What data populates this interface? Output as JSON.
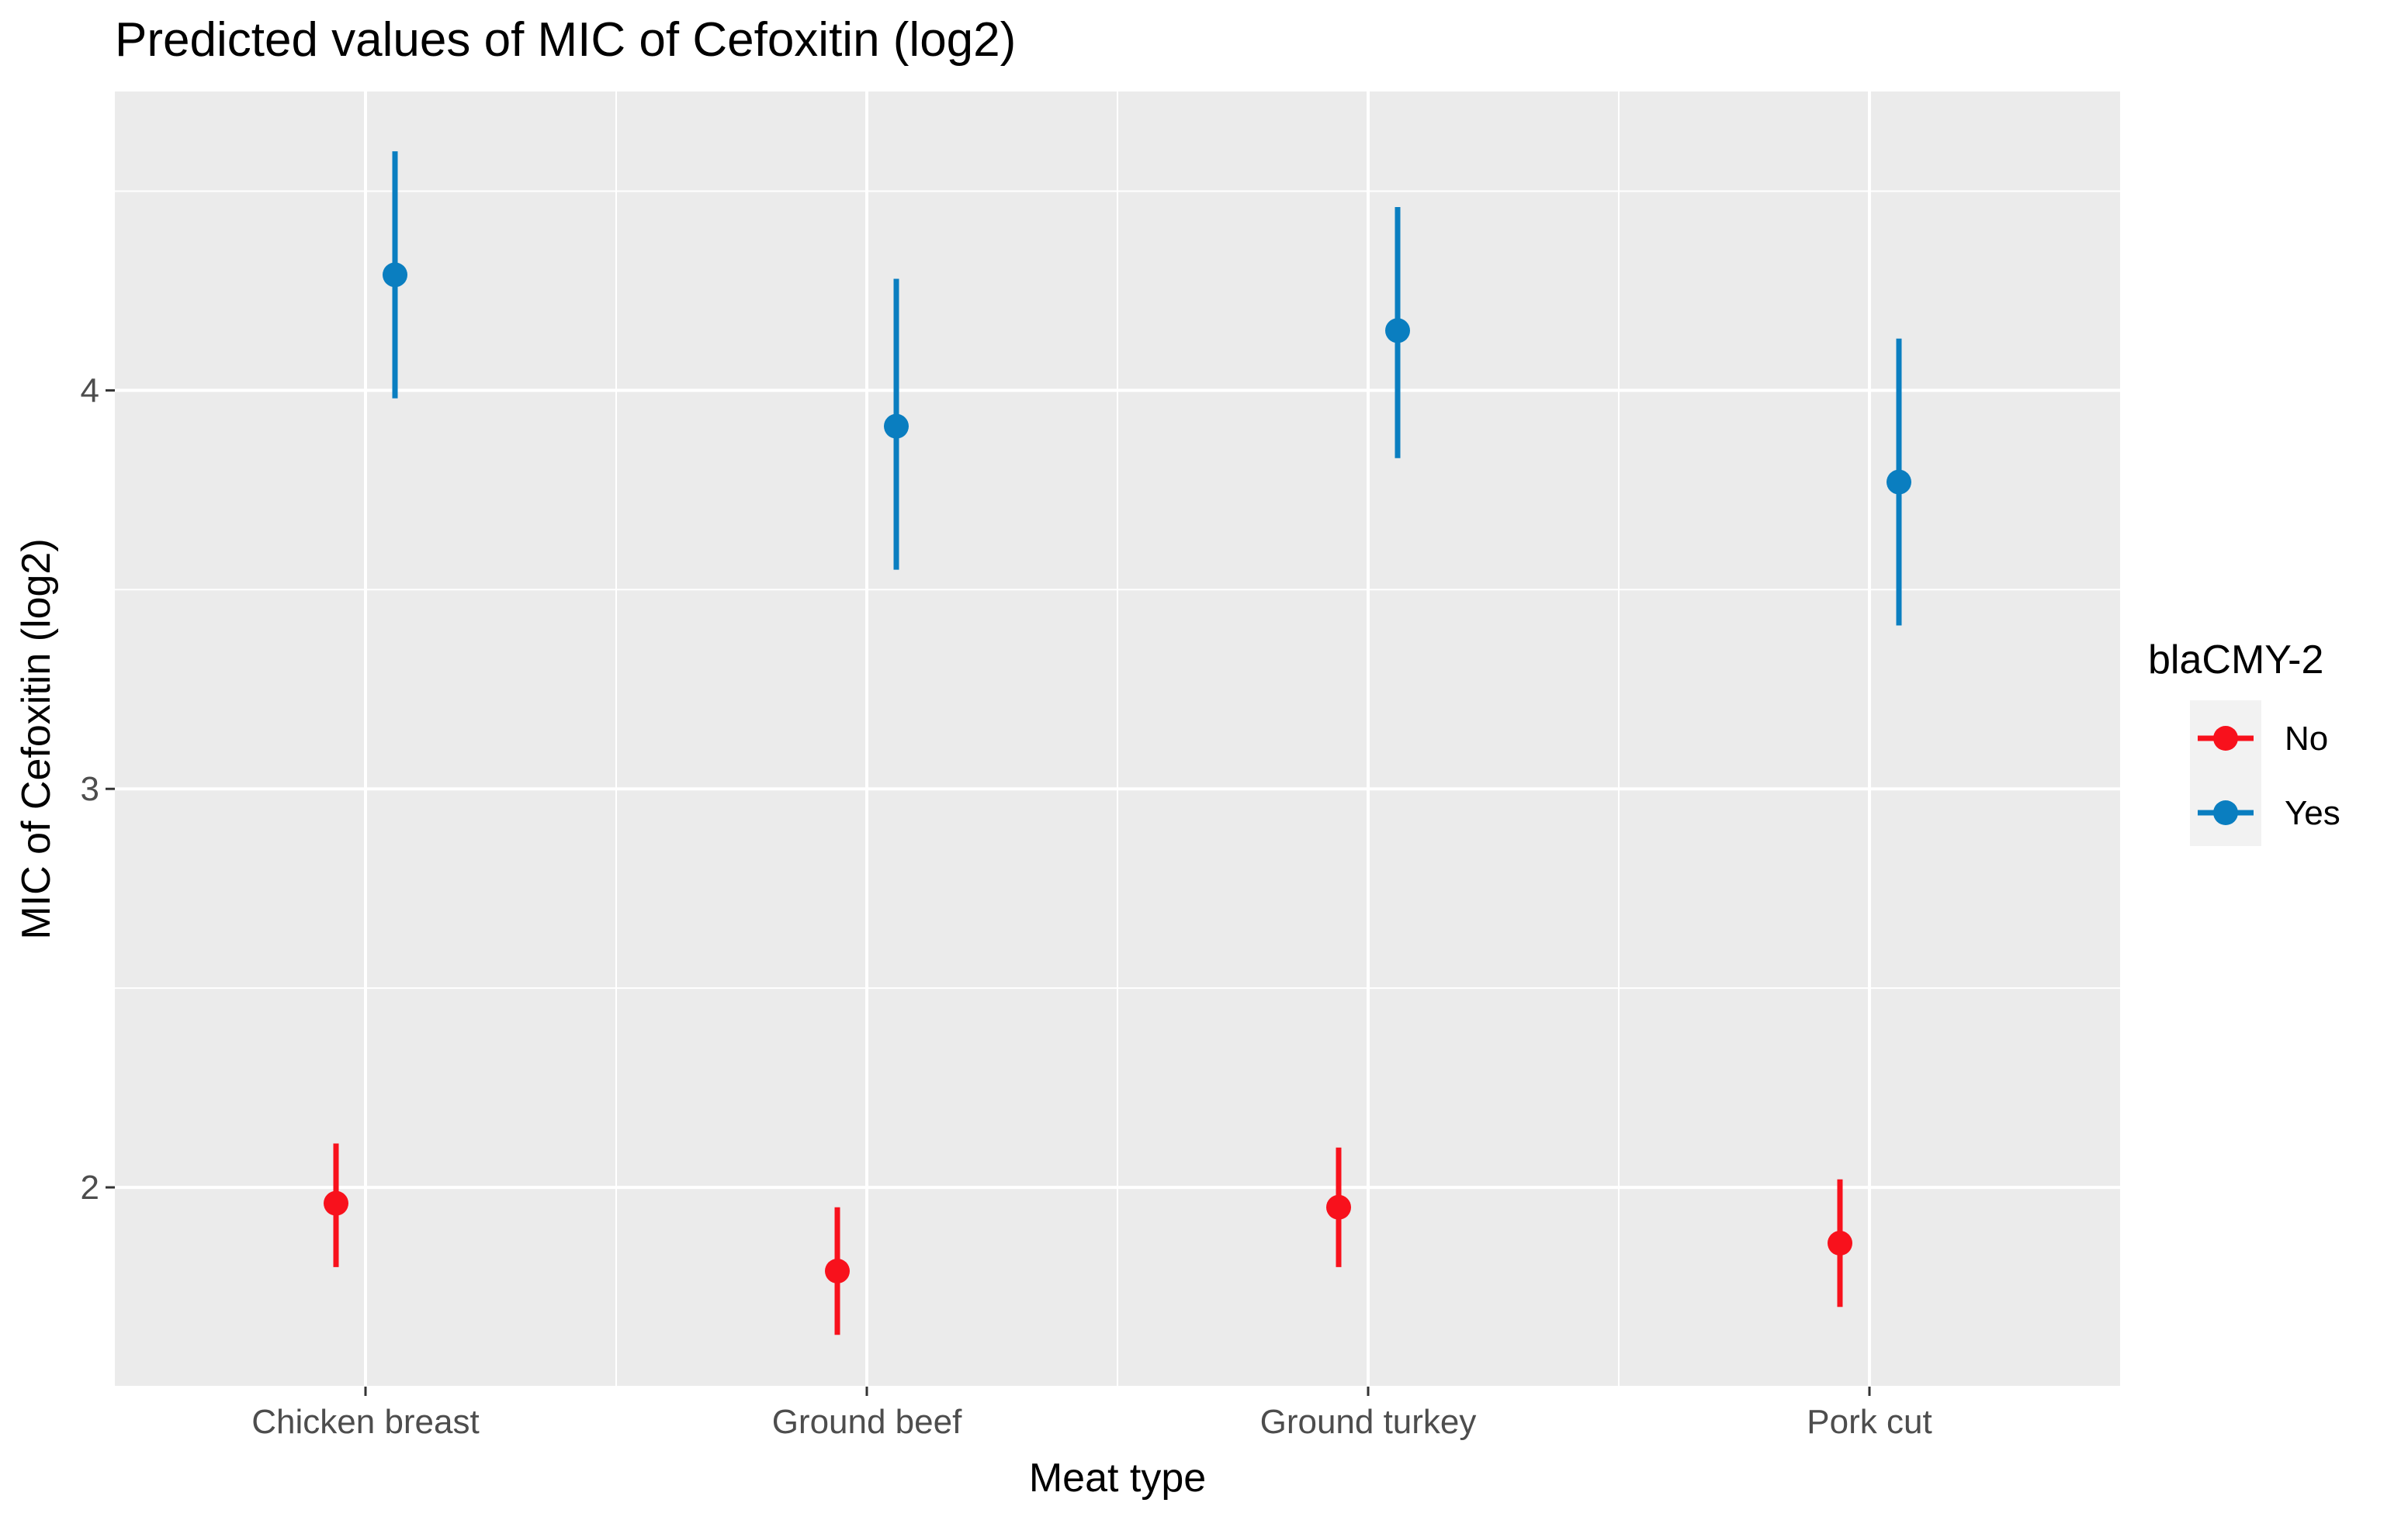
{
  "chart_data": {
    "type": "scatter",
    "subtype": "point-range",
    "title": "Predicted values of MIC of Cefoxitin (log2)",
    "xlabel": "Meat type",
    "ylabel": "MIC of Cefoxitin (log2)",
    "categories": [
      "Chicken breast",
      "Ground beef",
      "Ground turkey",
      "Pork cut"
    ],
    "ylim": [
      1.5,
      4.75
    ],
    "y_ticks": [
      2,
      3,
      4
    ],
    "y_tick_labels": [
      "2",
      "3",
      "4"
    ],
    "grid": true,
    "legend": {
      "title": "blaCMY-2",
      "position": "right"
    },
    "series": [
      {
        "name": "No",
        "color": "#f8111c",
        "values": [
          1.96,
          1.79,
          1.95,
          1.86
        ],
        "lower": [
          1.8,
          1.63,
          1.8,
          1.7
        ],
        "upper": [
          2.11,
          1.95,
          2.1,
          2.02
        ]
      },
      {
        "name": "Yes",
        "color": "#0a7ec0",
        "values": [
          4.29,
          3.91,
          4.15,
          3.77
        ],
        "lower": [
          3.98,
          3.55,
          3.83,
          3.41
        ],
        "upper": [
          4.6,
          4.28,
          4.46,
          4.13
        ]
      }
    ]
  }
}
